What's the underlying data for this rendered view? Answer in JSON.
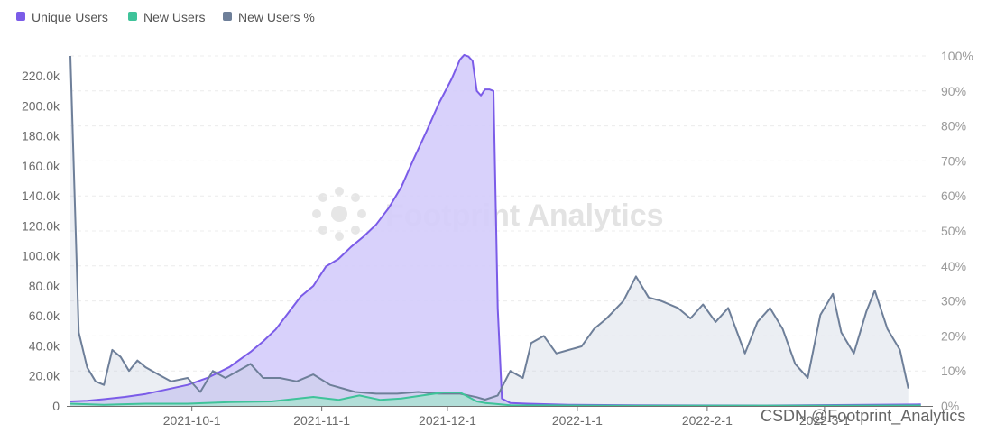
{
  "chart_data": {
    "type": "area",
    "series": [
      {
        "name": "Unique Users",
        "axis": "left",
        "color": "#7b5ce8",
        "fill": "#d4ccfb",
        "points": [
          [
            "2021-09-02",
            3000
          ],
          [
            "2021-09-06",
            3500
          ],
          [
            "2021-09-10",
            4500
          ],
          [
            "2021-09-15",
            6000
          ],
          [
            "2021-09-20",
            8000
          ],
          [
            "2021-09-25",
            11000
          ],
          [
            "2021-09-30",
            14000
          ],
          [
            "2021-10-05",
            19000
          ],
          [
            "2021-10-10",
            26000
          ],
          [
            "2021-10-15",
            36000
          ],
          [
            "2021-10-18",
            43000
          ],
          [
            "2021-10-21",
            51000
          ],
          [
            "2021-10-24",
            62000
          ],
          [
            "2021-10-27",
            73000
          ],
          [
            "2021-10-30",
            80000
          ],
          [
            "2021-11-02",
            93000
          ],
          [
            "2021-11-05",
            98000
          ],
          [
            "2021-11-08",
            106000
          ],
          [
            "2021-11-11",
            113000
          ],
          [
            "2021-11-14",
            121000
          ],
          [
            "2021-11-17",
            132000
          ],
          [
            "2021-11-20",
            146000
          ],
          [
            "2021-11-23",
            165000
          ],
          [
            "2021-11-26",
            183000
          ],
          [
            "2021-11-29",
            202000
          ],
          [
            "2021-12-02",
            218000
          ],
          [
            "2021-12-04",
            231000
          ],
          [
            "2021-12-05",
            234000
          ],
          [
            "2021-12-06",
            233000
          ],
          [
            "2021-12-07",
            230000
          ],
          [
            "2021-12-08",
            210000
          ],
          [
            "2021-12-09",
            207000
          ],
          [
            "2021-12-10",
            211000
          ],
          [
            "2021-12-11",
            211000
          ],
          [
            "2021-12-12",
            210000
          ],
          [
            "2021-12-13",
            65000
          ],
          [
            "2021-12-14",
            5000
          ],
          [
            "2021-12-16",
            2000
          ],
          [
            "2021-12-20",
            1500
          ],
          [
            "2021-12-30",
            800
          ],
          [
            "2022-01-15",
            400
          ],
          [
            "2022-02-15",
            300
          ],
          [
            "2022-03-24",
            1000
          ]
        ]
      },
      {
        "name": "New Users",
        "axis": "left",
        "color": "#3fc39a",
        "fill": "#a7e3d0",
        "points": [
          [
            "2021-09-02",
            1500
          ],
          [
            "2021-09-10",
            800
          ],
          [
            "2021-09-20",
            1500
          ],
          [
            "2021-09-30",
            1500
          ],
          [
            "2021-10-10",
            2500
          ],
          [
            "2021-10-20",
            3000
          ],
          [
            "2021-10-30",
            6000
          ],
          [
            "2021-11-05",
            4000
          ],
          [
            "2021-11-10",
            7000
          ],
          [
            "2021-11-15",
            4000
          ],
          [
            "2021-11-20",
            5000
          ],
          [
            "2021-11-25",
            7000
          ],
          [
            "2021-11-30",
            9000
          ],
          [
            "2021-12-04",
            9000
          ],
          [
            "2021-12-08",
            3000
          ],
          [
            "2021-12-10",
            2000
          ],
          [
            "2021-12-12",
            1500
          ],
          [
            "2021-12-16",
            500
          ],
          [
            "2022-01-15",
            200
          ],
          [
            "2022-03-24",
            300
          ]
        ]
      },
      {
        "name": "New Users %",
        "axis": "right",
        "color": "#6e7f99",
        "fill": "#c5cfdd",
        "points": [
          [
            "2021-09-02",
            100
          ],
          [
            "2021-09-04",
            21
          ],
          [
            "2021-09-06",
            11
          ],
          [
            "2021-09-08",
            7
          ],
          [
            "2021-09-10",
            6
          ],
          [
            "2021-09-12",
            16
          ],
          [
            "2021-09-14",
            14
          ],
          [
            "2021-09-16",
            10
          ],
          [
            "2021-09-18",
            13
          ],
          [
            "2021-09-20",
            11
          ],
          [
            "2021-09-23",
            9
          ],
          [
            "2021-09-26",
            7
          ],
          [
            "2021-09-30",
            8
          ],
          [
            "2021-10-03",
            4
          ],
          [
            "2021-10-06",
            10
          ],
          [
            "2021-10-09",
            8
          ],
          [
            "2021-10-12",
            10
          ],
          [
            "2021-10-15",
            12
          ],
          [
            "2021-10-18",
            8
          ],
          [
            "2021-10-22",
            8
          ],
          [
            "2021-10-26",
            7
          ],
          [
            "2021-10-30",
            9
          ],
          [
            "2021-11-03",
            6
          ],
          [
            "2021-11-06",
            5
          ],
          [
            "2021-11-09",
            4
          ],
          [
            "2021-11-14",
            3.5
          ],
          [
            "2021-11-19",
            3.5
          ],
          [
            "2021-11-24",
            4
          ],
          [
            "2021-11-29",
            3.5
          ],
          [
            "2021-12-04",
            3.5
          ],
          [
            "2021-12-08",
            2.5
          ],
          [
            "2021-12-10",
            1.8
          ],
          [
            "2021-12-13",
            3
          ],
          [
            "2021-12-16",
            10
          ],
          [
            "2021-12-19",
            8
          ],
          [
            "2021-12-21",
            18
          ],
          [
            "2021-12-24",
            20
          ],
          [
            "2021-12-27",
            15
          ],
          [
            "2021-12-30",
            16
          ],
          [
            "2022-01-02",
            17
          ],
          [
            "2022-01-05",
            22
          ],
          [
            "2022-01-08",
            25
          ],
          [
            "2022-01-12",
            30
          ],
          [
            "2022-01-15",
            37
          ],
          [
            "2022-01-18",
            31
          ],
          [
            "2022-01-21",
            30
          ],
          [
            "2022-01-25",
            28
          ],
          [
            "2022-01-28",
            25
          ],
          [
            "2022-01-31",
            29
          ],
          [
            "2022-02-03",
            24
          ],
          [
            "2022-02-06",
            28
          ],
          [
            "2022-02-10",
            15
          ],
          [
            "2022-02-13",
            24
          ],
          [
            "2022-02-16",
            28
          ],
          [
            "2022-02-19",
            22
          ],
          [
            "2022-02-22",
            12
          ],
          [
            "2022-02-25",
            8
          ],
          [
            "2022-02-28",
            26
          ],
          [
            "2022-03-03",
            32
          ],
          [
            "2022-03-05",
            21
          ],
          [
            "2022-03-08",
            15
          ],
          [
            "2022-03-11",
            27
          ],
          [
            "2022-03-13",
            33
          ],
          [
            "2022-03-16",
            22
          ],
          [
            "2022-03-19",
            16
          ],
          [
            "2022-03-21",
            5
          ]
        ]
      }
    ],
    "legend": [
      "Unique Users",
      "New Users",
      "New Users %"
    ],
    "legend_position": "top-left",
    "x_ticks": [
      {
        "date": "2021-10-01",
        "label": "2021-10-1"
      },
      {
        "date": "2021-11-01",
        "label": "2021-11-1"
      },
      {
        "date": "2021-12-01",
        "label": "2021-12-1"
      },
      {
        "date": "2022-01-01",
        "label": "2022-1-1"
      },
      {
        "date": "2022-02-01",
        "label": "2022-2-1"
      },
      {
        "date": "2022-03-01",
        "label": "2022-3-1"
      }
    ],
    "x_range": [
      "2021-09-02",
      "2022-03-26"
    ],
    "y_left": {
      "range": [
        0,
        233333
      ],
      "ticks": [
        0,
        20000,
        40000,
        60000,
        80000,
        100000,
        120000,
        140000,
        160000,
        180000,
        200000,
        220000
      ],
      "tick_labels": [
        "0",
        "20.0k",
        "40.0k",
        "60.0k",
        "80.0k",
        "100.0k",
        "120.0k",
        "140.0k",
        "160.0k",
        "180.0k",
        "200.0k",
        "220.0k"
      ]
    },
    "y_right": {
      "range": [
        0,
        100
      ],
      "ticks": [
        0,
        10,
        20,
        30,
        40,
        50,
        60,
        70,
        80,
        90,
        100
      ],
      "tick_labels": [
        "0%",
        "10%",
        "20%",
        "30%",
        "40%",
        "50%",
        "60%",
        "70%",
        "80%",
        "90%",
        "100%"
      ]
    },
    "grid": "horizontal dashed"
  },
  "watermark": {
    "text": "Footprint Analytics",
    "icon": "footprint-logo-icon"
  },
  "credit": "CSDN @Footprint_Analytics"
}
